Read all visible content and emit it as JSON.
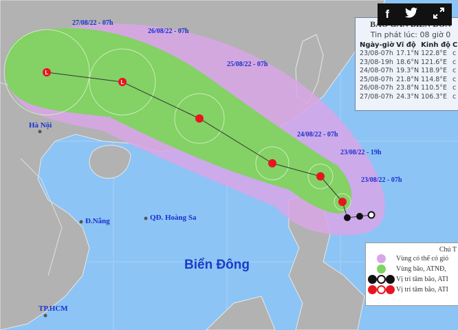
{
  "colors": {
    "sea": "#8cc4f5",
    "land": "#b2b2b2",
    "storm_zone": "#7fd35f",
    "wind_zone": "#d8a6e6",
    "forecast_icon": "#e8141e",
    "past_icon": "#111111",
    "label": "#1a2fd0"
  },
  "social": {
    "facebook": "f",
    "twitter": "twitter-icon",
    "expand": "expand-icon"
  },
  "info": {
    "title": "BÃO GẦN BIỂN ĐÔN",
    "issued": "Tin phát lúc: 08 giờ 0",
    "headers": [
      "Ngày-giờ",
      "Vĩ độ",
      "Kinh độ",
      "C"
    ],
    "rows": [
      [
        "23/08-07h",
        "17.1°N",
        "122.8°E",
        "c"
      ],
      [
        "23/08-19h",
        "18.6°N",
        "121.6°E",
        "c"
      ],
      [
        "24/08-07h",
        "19.3°N",
        "118.9°E",
        "c"
      ],
      [
        "25/08-07h",
        "21.8°N",
        "114.8°E",
        "c"
      ],
      [
        "26/08-07h",
        "23.8°N",
        "110.5°E",
        "c"
      ],
      [
        "27/08-07h",
        "24.3°N",
        "106.3°E",
        "c"
      ]
    ]
  },
  "track_labels": [
    "27/08/22 - 07h",
    "26/08/22 - 07h",
    "25/08/22 - 07h",
    "24/08/22 - 07h",
    "23/08/22 - 19h",
    "23/08/22 - 07h"
  ],
  "places": {
    "hanoi": "Hà Nội",
    "danang": "Đ.Nẵng",
    "hoangsa": "QĐ. Hoàng Sa",
    "bien_dong": "Biển Đông",
    "hcm": "TP.HCM"
  },
  "legend": {
    "title": "Chú T",
    "items": [
      "Vùng có thể có gió",
      "Vùng bão, ATNĐ,",
      "Vị trí tâm bão, ATI",
      "Vị trí tâm bão, ATI"
    ]
  }
}
